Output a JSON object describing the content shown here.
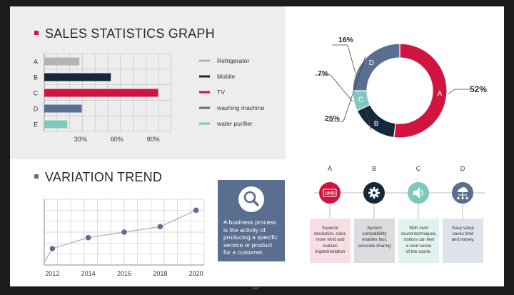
{
  "sales": {
    "title": "SALES STATISTICS GRAPH",
    "accent": "#d1143f"
  },
  "trend": {
    "title": "VARIATION TREND",
    "accent": "#5a6e8f"
  },
  "chart_data": [
    {
      "type": "bar",
      "orientation": "horizontal",
      "title": "SALES STATISTICS GRAPH",
      "categories": [
        "A",
        "B",
        "C",
        "D",
        "E"
      ],
      "values": [
        29,
        55,
        94,
        31,
        19
      ],
      "colors": [
        "#b3b3b3",
        "#15293b",
        "#d1143f",
        "#5a6e8f",
        "#7fc8bc"
      ],
      "xticks": [
        "30%",
        "60%",
        "90%"
      ],
      "xlim": [
        0,
        105
      ],
      "grid": true,
      "legend": [
        "Refrigerator",
        "Mobile",
        "TV",
        "washing machine",
        "water purifier"
      ],
      "legend_position": "right"
    },
    {
      "type": "pie",
      "donut": true,
      "labels": [
        "A",
        "B",
        "C",
        "D"
      ],
      "values": [
        52,
        16,
        7,
        25
      ],
      "percent_labels": [
        "52%",
        "16%",
        "7%",
        "25%"
      ],
      "colors": [
        "#d1143f",
        "#15293b",
        "#7fc8bc",
        "#5a6e8f"
      ]
    },
    {
      "type": "line",
      "title": "VARIATION TREND",
      "x": [
        2012,
        2014,
        2016,
        2018,
        2020
      ],
      "xticks": [
        "2012",
        "2014",
        "2016",
        "2018",
        "2020"
      ],
      "y": [
        10,
        30,
        40,
        50,
        80
      ],
      "ylim": [
        -20,
        100
      ],
      "grid": true,
      "color": "#5a6e8f"
    }
  ],
  "info_box": {
    "text": "A business process\nis the activity of\nproducing a specific\nservice or product\nfor a customer.",
    "icon": "magnifier-icon"
  },
  "features": [
    {
      "letter": "A",
      "icon": "uhd-icon",
      "icon_text": "UHD",
      "color": "#d1143f",
      "box_bg": "#f8dde3",
      "text": "Superior\nresolution, color,\nmore vivid and\nrealistic\nimplementation"
    },
    {
      "letter": "B",
      "icon": "gear-icon",
      "color": "#15293b",
      "box_bg": "#dadcdf",
      "text": "System\ncompatibility\nenables fast,\naccurate sharing"
    },
    {
      "letter": "C",
      "icon": "speaker-icon",
      "color": "#7fc8bc",
      "box_bg": "#e2f2ee",
      "text": "With vivid\nsound techniques,\nvisitors can feel\na vivid sense\nof the scene."
    },
    {
      "letter": "D",
      "icon": "network-icon",
      "color": "#5a6e8f",
      "box_bg": "#dee2ea",
      "text": "Easy setup\nsaves time\nand money."
    }
  ],
  "brand": "LG"
}
